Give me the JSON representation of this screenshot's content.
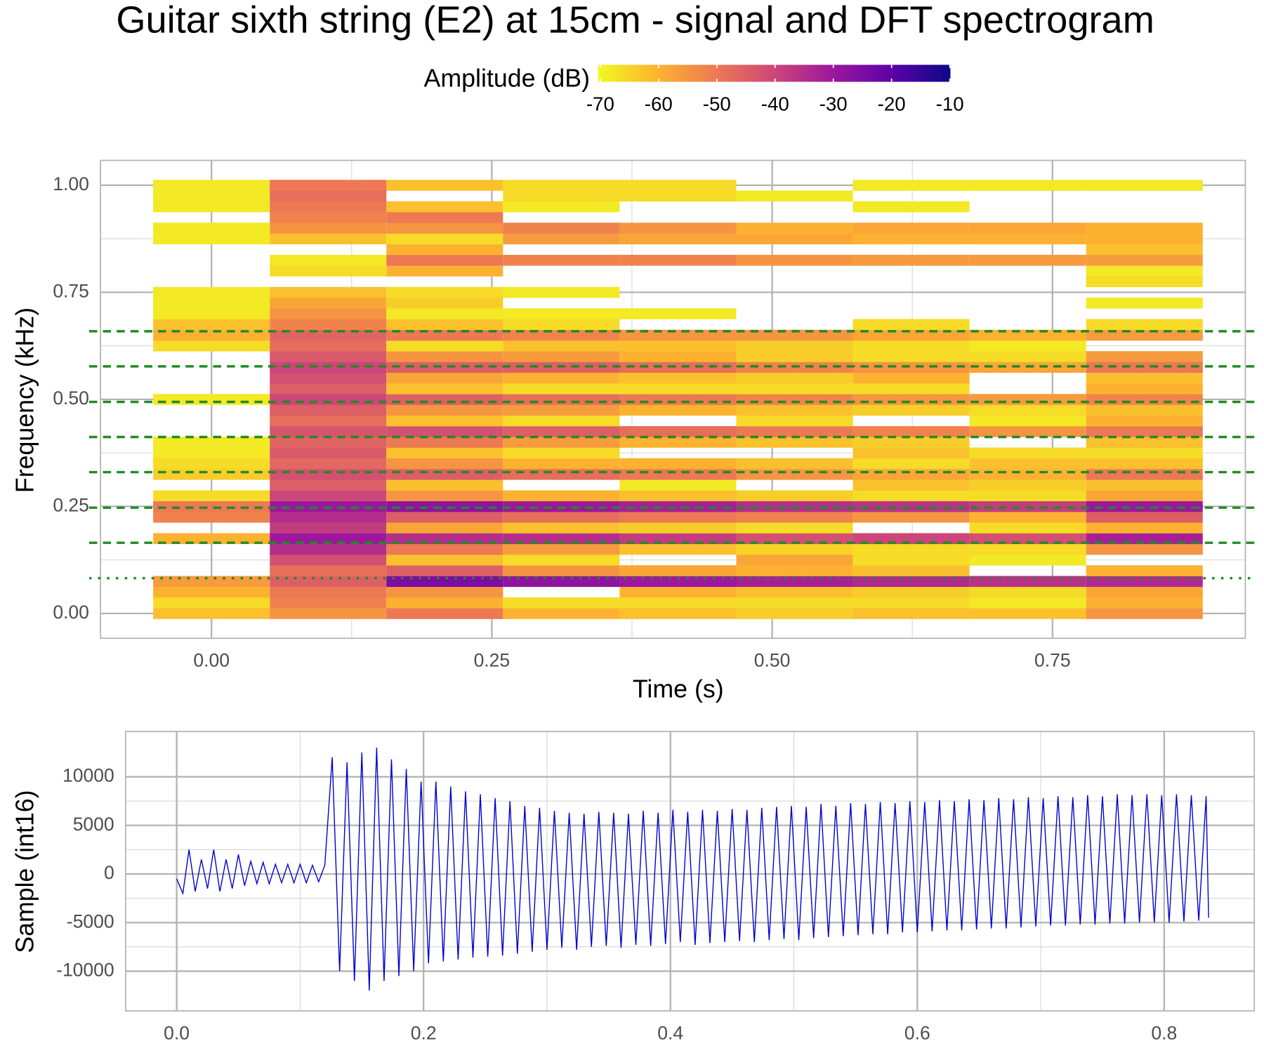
{
  "chart_data": [
    {
      "type": "heatmap",
      "title": "Guitar sixth string (E2) at 15cm - signal and DFT spectrogram",
      "x_label": "Time (s)",
      "y_label": "Frequency (kHz)",
      "x": [
        0,
        0.104,
        0.208,
        0.312,
        0.416,
        0.52,
        0.624,
        0.728,
        0.832
      ],
      "y": [
        0,
        0.025,
        0.05,
        0.075,
        0.1,
        0.125,
        0.15,
        0.175,
        0.2,
        0.225,
        0.25,
        0.275,
        0.3,
        0.325,
        0.35,
        0.375,
        0.4,
        0.425,
        0.45,
        0.475,
        0.5,
        0.525,
        0.55,
        0.575,
        0.6,
        0.625,
        0.65,
        0.675,
        0.7,
        0.725,
        0.75,
        0.775,
        0.8,
        0.825,
        0.85,
        0.875,
        0.9,
        0.925,
        0.95,
        0.975,
        1.0
      ],
      "values": [
        [
          -62,
          -66,
          -60,
          -56,
          null,
          null,
          null,
          -60,
          null,
          -52,
          -50,
          -66,
          null,
          -64,
          -66,
          -68,
          -68,
          null,
          null,
          null,
          -68,
          null,
          null,
          null,
          null,
          -66,
          -60,
          -62,
          -68,
          -68,
          -68,
          null,
          null,
          null,
          null,
          -68,
          -68,
          null,
          -68,
          -68,
          -68
        ],
        [
          -55,
          -52,
          -50,
          -45,
          -48,
          -42,
          -35,
          -30,
          -38,
          -35,
          -30,
          -40,
          -45,
          -42,
          -47,
          -44,
          -46,
          -43,
          -48,
          -45,
          -40,
          -45,
          -42,
          -40,
          -44,
          -48,
          -46,
          -52,
          -55,
          -58,
          -62,
          null,
          -66,
          -68,
          null,
          -62,
          -55,
          -52,
          -50,
          -48,
          -50
        ],
        [
          -50,
          -60,
          -55,
          -25,
          -45,
          -62,
          -50,
          -35,
          -58,
          -45,
          -28,
          -55,
          -62,
          -45,
          -55,
          -62,
          -50,
          -42,
          -62,
          -55,
          -45,
          -62,
          -58,
          -45,
          -55,
          -66,
          -50,
          -62,
          -68,
          -64,
          -66,
          null,
          -60,
          -50,
          -60,
          -66,
          -55,
          -50,
          -62,
          null,
          -62
        ],
        [
          -60,
          -66,
          null,
          -28,
          -55,
          -66,
          -56,
          -35,
          -62,
          -48,
          -30,
          -60,
          null,
          -48,
          -60,
          -66,
          -56,
          -45,
          -66,
          -56,
          -48,
          -66,
          -60,
          -45,
          -56,
          -62,
          -52,
          -66,
          -68,
          null,
          -68,
          null,
          null,
          -52,
          null,
          -56,
          -52,
          null,
          -68,
          -66,
          -66
        ],
        [
          -62,
          -66,
          -60,
          -30,
          -58,
          null,
          -62,
          -38,
          -64,
          -50,
          -32,
          -62,
          -68,
          -50,
          -60,
          null,
          -60,
          -48,
          null,
          -60,
          -50,
          -66,
          -62,
          -48,
          -60,
          -62,
          -55,
          null,
          -68,
          null,
          null,
          null,
          null,
          -52,
          null,
          -58,
          -55,
          null,
          null,
          -66,
          -66
        ],
        [
          -64,
          -66,
          -62,
          -32,
          -60,
          -58,
          -65,
          -42,
          -66,
          -52,
          -35,
          -64,
          null,
          -55,
          -62,
          null,
          -62,
          -50,
          -66,
          -62,
          -52,
          -66,
          -64,
          -52,
          -64,
          -64,
          -55,
          null,
          null,
          null,
          null,
          null,
          null,
          -55,
          null,
          -58,
          -60,
          null,
          null,
          -68,
          null
        ],
        [
          -62,
          -66,
          -64,
          -34,
          -62,
          -66,
          -66,
          -40,
          null,
          -55,
          -36,
          -66,
          -62,
          -58,
          -66,
          -62,
          -64,
          -52,
          null,
          -64,
          -55,
          -66,
          -60,
          -55,
          -66,
          -66,
          -58,
          -66,
          null,
          null,
          null,
          null,
          null,
          -56,
          null,
          -60,
          -58,
          null,
          -68,
          null,
          -68
        ],
        [
          -62,
          -68,
          -66,
          -36,
          null,
          -68,
          -66,
          -42,
          -66,
          -60,
          -38,
          -66,
          -64,
          -60,
          -62,
          -66,
          null,
          -55,
          -68,
          -66,
          -56,
          null,
          null,
          -58,
          -66,
          -68,
          -60,
          null,
          null,
          null,
          null,
          null,
          null,
          -56,
          null,
          -60,
          -58,
          null,
          null,
          null,
          -68
        ],
        [
          -55,
          -60,
          -58,
          -34,
          -60,
          null,
          -55,
          -32,
          -60,
          -45,
          -30,
          -58,
          -62,
          -50,
          -62,
          -66,
          -62,
          -50,
          -60,
          -62,
          -52,
          -60,
          -62,
          -50,
          -56,
          null,
          -56,
          -66,
          null,
          -68,
          null,
          -66,
          -68,
          -56,
          -62,
          -60,
          -60,
          null,
          null,
          null,
          -68
        ]
      ],
      "colorbar": {
        "title": "Amplitude (dB)",
        "lim": [
          -70.4,
          -9.9
        ],
        "ticks": [
          -70,
          -60,
          -50,
          -40,
          -30,
          -20,
          -10
        ],
        "colors": [
          "#f0f921",
          "#fdb42f",
          "#ed7953",
          "#cc4778",
          "#9c179e",
          "#5c01a6",
          "#0d0887"
        ]
      },
      "reference_lines": [
        {
          "value": 0.0824,
          "style": "dotted"
        },
        {
          "value": 0.165,
          "style": "dashed"
        },
        {
          "value": 0.247,
          "style": "dashed"
        },
        {
          "value": 0.33,
          "style": "dashed"
        },
        {
          "value": 0.412,
          "style": "dashed"
        },
        {
          "value": 0.494,
          "style": "dashed"
        },
        {
          "value": 0.577,
          "style": "dashed"
        },
        {
          "value": 0.659,
          "style": "dashed"
        }
      ],
      "reference_color": "#228b22",
      "xlim": [
        -0.099,
        0.922
      ],
      "ylim": [
        -0.058,
        1.058
      ],
      "xticks": [
        {
          "value": 0,
          "label": "0.00"
        },
        {
          "value": 0.25,
          "label": "0.25"
        },
        {
          "value": 0.5,
          "label": "0.50"
        },
        {
          "value": 0.75,
          "label": "0.75"
        }
      ],
      "yticks": [
        {
          "value": 0,
          "label": "0.00"
        },
        {
          "value": 0.25,
          "label": "0.25"
        },
        {
          "value": 0.5,
          "label": "0.50"
        },
        {
          "value": 0.75,
          "label": "0.75"
        },
        {
          "value": 1,
          "label": "1.00"
        }
      ],
      "grid": true
    },
    {
      "type": "line",
      "y_label": "Sample (int16)",
      "color": "#0000cd",
      "x": [
        0,
        0.005,
        0.01,
        0.015,
        0.02,
        0.025,
        0.03,
        0.035,
        0.04,
        0.045,
        0.05,
        0.055,
        0.06,
        0.065,
        0.07,
        0.075,
        0.08,
        0.085,
        0.09,
        0.095,
        0.1,
        0.105,
        0.11,
        0.115,
        0.12,
        0.126,
        0.132,
        0.138,
        0.144,
        0.15,
        0.156,
        0.162,
        0.168,
        0.174,
        0.18,
        0.186,
        0.192,
        0.198,
        0.204,
        0.21,
        0.216,
        0.222,
        0.228,
        0.234,
        0.24,
        0.246,
        0.252,
        0.258,
        0.264,
        0.27,
        0.276,
        0.282,
        0.288,
        0.294,
        0.3,
        0.306,
        0.312,
        0.318,
        0.324,
        0.33,
        0.336,
        0.342,
        0.348,
        0.354,
        0.36,
        0.366,
        0.372,
        0.378,
        0.384,
        0.39,
        0.396,
        0.402,
        0.408,
        0.414,
        0.42,
        0.426,
        0.432,
        0.438,
        0.444,
        0.45,
        0.456,
        0.462,
        0.468,
        0.474,
        0.48,
        0.486,
        0.492,
        0.498,
        0.504,
        0.51,
        0.516,
        0.522,
        0.528,
        0.534,
        0.54,
        0.546,
        0.552,
        0.558,
        0.564,
        0.57,
        0.576,
        0.582,
        0.588,
        0.594,
        0.6,
        0.606,
        0.612,
        0.618,
        0.624,
        0.63,
        0.636,
        0.642,
        0.648,
        0.654,
        0.66,
        0.666,
        0.672,
        0.678,
        0.684,
        0.69,
        0.696,
        0.702,
        0.708,
        0.714,
        0.72,
        0.726,
        0.732,
        0.738,
        0.744,
        0.75,
        0.756,
        0.762,
        0.768,
        0.774,
        0.78,
        0.786,
        0.792,
        0.798,
        0.804,
        0.81,
        0.816,
        0.822,
        0.828,
        0.834,
        0.836
      ],
      "values": [
        -500,
        -2000,
        2500,
        -1800,
        1500,
        -1500,
        2500,
        -1800,
        1500,
        -1500,
        2000,
        -1200,
        1300,
        -1000,
        1200,
        -1000,
        1000,
        -900,
        1000,
        -900,
        1000,
        -900,
        900,
        -800,
        900,
        12000,
        -10000,
        11500,
        -11000,
        12500,
        -12000,
        13000,
        -11000,
        11800,
        -10500,
        10800,
        -10000,
        9500,
        -9200,
        9500,
        -9000,
        9000,
        -8800,
        8500,
        -8600,
        8200,
        -8500,
        7800,
        -8400,
        7500,
        -8200,
        7000,
        -8000,
        6800,
        -7800,
        6500,
        -7600,
        6300,
        -7800,
        6200,
        -7500,
        6400,
        -7400,
        6300,
        -7600,
        6200,
        -7300,
        6500,
        -7400,
        6300,
        -7200,
        6600,
        -7000,
        6400,
        -7300,
        6600,
        -7100,
        6500,
        -7000,
        6700,
        -6900,
        6600,
        -7000,
        6800,
        -6800,
        6900,
        -6700,
        7000,
        -6800,
        6900,
        -6600,
        7200,
        -6500,
        7000,
        -6400,
        7300,
        -6300,
        7200,
        -6200,
        7400,
        -6200,
        7300,
        -6000,
        7500,
        -6000,
        7400,
        -5900,
        7600,
        -5800,
        7500,
        -5800,
        7700,
        -5700,
        7600,
        -5600,
        7800,
        -5600,
        7700,
        -5500,
        7900,
        -5400,
        7800,
        -5300,
        8000,
        -5300,
        7900,
        -5200,
        8100,
        -5200,
        8000,
        -5100,
        8200,
        -5100,
        8100,
        -5000,
        8200,
        -5000,
        8100,
        -5000,
        8200,
        -4900,
        8100,
        -4800,
        8000,
        -4500
      ],
      "xlim": [
        -0.0414,
        0.873
      ],
      "ylim": [
        -14083,
        14667
      ],
      "xticks": [
        {
          "value": 0,
          "label": "0.0"
        },
        {
          "value": 0.2,
          "label": "0.2"
        },
        {
          "value": 0.4,
          "label": "0.4"
        },
        {
          "value": 0.6,
          "label": "0.6"
        },
        {
          "value": 0.8,
          "label": "0.8"
        }
      ],
      "yticks": [
        -10000,
        -5000,
        0,
        5000,
        10000
      ],
      "grid": true
    }
  ]
}
